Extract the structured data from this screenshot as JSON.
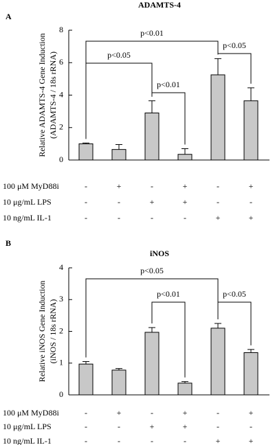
{
  "chart_data": [
    {
      "type": "bar",
      "panel_label": "A",
      "title": "ADAMTS-4",
      "ylabel": [
        "Relative ADAMTS-4 Gene Induction",
        "(ADAMTS-4 / 18s rRNA)"
      ],
      "values": [
        1.0,
        0.65,
        2.9,
        0.35,
        5.25,
        3.65
      ],
      "errors": [
        0.05,
        0.3,
        0.75,
        0.35,
        1.0,
        0.8
      ],
      "color": "#c8c8c8",
      "ylim": [
        0,
        8
      ],
      "yticks": [
        0,
        2,
        4,
        6,
        8
      ],
      "treatments": [
        {
          "label": "100 μM MyD88i",
          "signs": [
            "-",
            "+",
            "-",
            "+",
            "-",
            "+"
          ]
        },
        {
          "label": "10 μg/mL LPS",
          "signs": [
            "-",
            "-",
            "+",
            "+",
            "-",
            "-"
          ]
        },
        {
          "label": "10 ng/mL IL-1",
          "signs": [
            "-",
            "-",
            "-",
            "-",
            "+",
            "+"
          ]
        }
      ],
      "annotations": [
        {
          "text": "p<0.01",
          "from": 0,
          "to": 4
        },
        {
          "text": "p<0.05",
          "from": 0,
          "to": 2
        },
        {
          "text": "p<0.01",
          "from": 2,
          "to": 3
        },
        {
          "text": "p<0.05",
          "from": 4,
          "to": 5
        }
      ]
    },
    {
      "type": "bar",
      "panel_label": "B",
      "title": "iNOS",
      "ylabel": [
        "Relative iNOS Gene Induction",
        "(iNOS / 18s rRNA)"
      ],
      "values": [
        0.97,
        0.78,
        1.97,
        0.37,
        2.1,
        1.33
      ],
      "errors": [
        0.08,
        0.05,
        0.15,
        0.05,
        0.15,
        0.1
      ],
      "color": "#c8c8c8",
      "ylim": [
        0,
        4
      ],
      "yticks": [
        0,
        1,
        2,
        3,
        4
      ],
      "treatments": [
        {
          "label": "100 μM MyD88i",
          "signs": [
            "-",
            "+",
            "-",
            "+",
            "-",
            "+"
          ]
        },
        {
          "label": "10 μg/mL LPS",
          "signs": [
            "-",
            "-",
            "+",
            "+",
            "-",
            "-"
          ]
        },
        {
          "label": "10 ng/mL IL-1",
          "signs": [
            "-",
            "-",
            "-",
            "-",
            "+",
            "+"
          ]
        }
      ],
      "annotations": [
        {
          "text": "p<0.05",
          "from": 0,
          "to": 4
        },
        {
          "text": "p<0.01",
          "from": 2,
          "to": 3
        },
        {
          "text": "p<0.05",
          "from": 4,
          "to": 5
        }
      ]
    }
  ]
}
